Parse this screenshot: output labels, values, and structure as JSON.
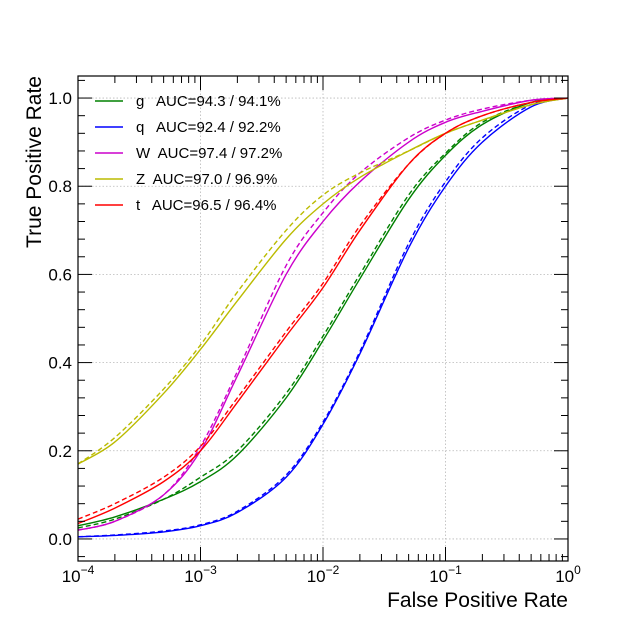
{
  "chart_data": {
    "type": "line",
    "title": "",
    "xlabel": "False Positive Rate",
    "ylabel": "True Positive Rate",
    "xscale": "log",
    "xlim": [
      0.0001,
      1
    ],
    "ylim": [
      -0.05,
      1.05
    ],
    "grid": true,
    "legend_position": "top-left",
    "x_ticks": [
      {
        "value": 0.0001,
        "base": "10",
        "exp": "-4"
      },
      {
        "value": 0.001,
        "base": "10",
        "exp": "-3"
      },
      {
        "value": 0.01,
        "base": "10",
        "exp": "-2"
      },
      {
        "value": 0.1,
        "base": "10",
        "exp": "-1"
      },
      {
        "value": 1,
        "base": "10",
        "exp": "0"
      }
    ],
    "y_ticks": [
      {
        "value": 0.0,
        "label": "0.0"
      },
      {
        "value": 0.2,
        "label": "0.2"
      },
      {
        "value": 0.4,
        "label": "0.4"
      },
      {
        "value": 0.6,
        "label": "0.6"
      },
      {
        "value": 0.8,
        "label": "0.8"
      },
      {
        "value": 1.0,
        "label": "1.0"
      }
    ],
    "series": [
      {
        "name": "g",
        "legend_label": "g   AUC=94.3 / 94.1%",
        "color": "#008000",
        "x": [
          0.0001,
          0.0002,
          0.0005,
          0.001,
          0.002,
          0.005,
          0.01,
          0.02,
          0.05,
          0.1,
          0.2,
          0.5,
          1
        ],
        "solid": [
          0.03,
          0.05,
          0.09,
          0.13,
          0.19,
          0.32,
          0.45,
          0.59,
          0.77,
          0.87,
          0.94,
          0.99,
          1.0
        ],
        "dashed": [
          0.025,
          0.045,
          0.09,
          0.14,
          0.2,
          0.33,
          0.46,
          0.6,
          0.78,
          0.875,
          0.945,
          0.99,
          1.0
        ]
      },
      {
        "name": "q",
        "legend_label": "q   AUC=92.4 / 92.2%",
        "color": "#0000ff",
        "x": [
          0.0001,
          0.0002,
          0.0005,
          0.001,
          0.002,
          0.005,
          0.01,
          0.02,
          0.05,
          0.1,
          0.2,
          0.5,
          1
        ],
        "solid": [
          0.005,
          0.008,
          0.016,
          0.03,
          0.06,
          0.14,
          0.26,
          0.42,
          0.66,
          0.8,
          0.9,
          0.98,
          1.0
        ],
        "dashed": [
          0.005,
          0.009,
          0.018,
          0.032,
          0.063,
          0.145,
          0.265,
          0.425,
          0.67,
          0.81,
          0.91,
          0.985,
          1.0
        ]
      },
      {
        "name": "W",
        "legend_label": "W  AUC=97.4 / 97.2%",
        "color": "#cc00cc",
        "x": [
          0.0001,
          0.0002,
          0.0005,
          0.001,
          0.002,
          0.005,
          0.01,
          0.02,
          0.05,
          0.1,
          0.2,
          0.5,
          1
        ],
        "solid": [
          0.02,
          0.04,
          0.1,
          0.2,
          0.37,
          0.6,
          0.72,
          0.81,
          0.9,
          0.945,
          0.97,
          0.995,
          1.0
        ],
        "dashed": [
          0.02,
          0.04,
          0.1,
          0.21,
          0.38,
          0.62,
          0.74,
          0.83,
          0.91,
          0.95,
          0.975,
          0.995,
          1.0
        ]
      },
      {
        "name": "Z",
        "legend_label": "Z  AUC=97.0 / 96.9%",
        "color": "#bbbb00",
        "x": [
          0.0001,
          0.0002,
          0.0005,
          0.001,
          0.002,
          0.005,
          0.01,
          0.02,
          0.05,
          0.1,
          0.2,
          0.5,
          1
        ],
        "solid": [
          0.17,
          0.22,
          0.33,
          0.43,
          0.54,
          0.68,
          0.76,
          0.82,
          0.88,
          0.92,
          0.95,
          0.985,
          1.0
        ],
        "dashed": [
          0.17,
          0.23,
          0.34,
          0.44,
          0.56,
          0.7,
          0.78,
          0.83,
          0.88,
          0.92,
          0.95,
          0.985,
          1.0
        ]
      },
      {
        "name": "t",
        "legend_label": "t   AUC=96.5 / 96.4%",
        "color": "#ff0000",
        "x": [
          0.0001,
          0.0002,
          0.0005,
          0.001,
          0.002,
          0.005,
          0.01,
          0.02,
          0.05,
          0.1,
          0.2,
          0.5,
          1
        ],
        "solid": [
          0.035,
          0.07,
          0.13,
          0.2,
          0.31,
          0.46,
          0.57,
          0.7,
          0.85,
          0.92,
          0.96,
          0.99,
          1.0
        ],
        "dashed": [
          0.045,
          0.08,
          0.14,
          0.21,
          0.32,
          0.47,
          0.58,
          0.71,
          0.85,
          0.92,
          0.96,
          0.99,
          1.0
        ]
      }
    ]
  }
}
